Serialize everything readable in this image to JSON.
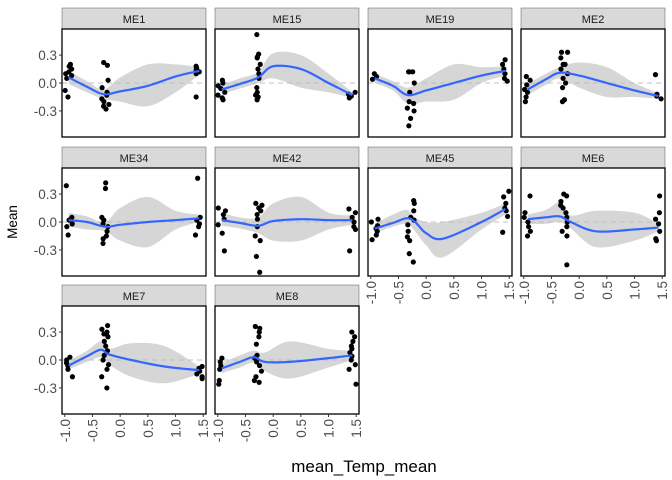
{
  "chart_data": {
    "type": "scatter",
    "layout": "facet_wrap",
    "xlabel": "mean_Temp_mean",
    "ylabel": "Mean",
    "xlim": [
      -1.05,
      1.55
    ],
    "ylim": [
      -0.58,
      0.58
    ],
    "xticks": [
      -1.0,
      -0.5,
      0.0,
      0.5,
      1.0,
      1.5
    ],
    "xtick_labels": [
      "-1.0",
      "-0.5",
      "0.0",
      "0.5",
      "1.0",
      "1.5"
    ],
    "yticks": [
      -0.3,
      0.0,
      0.3
    ],
    "ytick_labels": [
      "-0.3",
      "0.0",
      "0.3"
    ],
    "reference_line": {
      "y": 0,
      "style": "dashed",
      "color": "#bfbfbf"
    },
    "grid": false,
    "colors": {
      "points": "#000000",
      "smooth": "#3366FF",
      "ribbon": "#d4d4d4",
      "strip": "#d9d9d9",
      "panel_border": "#000000"
    },
    "panels": [
      {
        "label": "ME1",
        "points": [
          {
            "x": -0.93,
            "y": [
              0.2,
              0.18,
              0.15,
              0.12,
              0.1,
              0.08,
              0.05,
              -0.08,
              -0.15
            ]
          },
          {
            "x": -0.27,
            "y": [
              0.22,
              0.19,
              0.03,
              -0.05,
              -0.1,
              -0.13,
              -0.17,
              -0.2,
              -0.25,
              -0.28,
              -0.23
            ]
          },
          {
            "x": 1.43,
            "y": [
              0.18,
              0.16,
              0.14,
              0.12,
              0.1,
              -0.15
            ]
          }
        ],
        "smooth": [
          [
            -0.93,
            0.06,
            -0.01,
            0.13
          ],
          [
            -0.6,
            -0.04,
            -0.1,
            0.02
          ],
          [
            -0.3,
            -0.12,
            -0.17,
            -0.07
          ],
          [
            0.0,
            -0.09,
            -0.2,
            0.06
          ],
          [
            0.5,
            -0.03,
            -0.25,
            0.2
          ],
          [
            1.0,
            0.07,
            -0.1,
            0.2
          ],
          [
            1.43,
            0.13,
            0.09,
            0.17
          ]
        ]
      },
      {
        "label": "ME15",
        "points": [
          {
            "x": -0.93,
            "y": [
              0.03,
              0.0,
              -0.03,
              -0.06,
              -0.1,
              -0.13,
              -0.16,
              -0.18
            ]
          },
          {
            "x": -0.27,
            "y": [
              0.52,
              0.31,
              0.28,
              0.27,
              0.2,
              0.15,
              0.1,
              0.05,
              -0.05,
              -0.1,
              -0.15,
              -0.18,
              -0.13
            ]
          },
          {
            "x": 1.43,
            "y": [
              -0.1,
              -0.12,
              -0.14,
              -0.16
            ]
          }
        ],
        "smooth": [
          [
            -0.93,
            -0.07,
            -0.12,
            -0.02
          ],
          [
            -0.6,
            -0.01,
            -0.06,
            0.05
          ],
          [
            -0.27,
            0.06,
            0.0,
            0.12
          ],
          [
            0.0,
            0.18,
            0.05,
            0.32
          ],
          [
            0.5,
            0.15,
            -0.05,
            0.3
          ],
          [
            1.0,
            0.0,
            -0.1,
            0.1
          ],
          [
            1.43,
            -0.13,
            -0.16,
            -0.1
          ]
        ]
      },
      {
        "label": "ME19",
        "points": [
          {
            "x": -0.93,
            "y": [
              0.1,
              0.07,
              0.04
            ]
          },
          {
            "x": -0.27,
            "y": [
              0.12,
              0.12,
              0.12,
              0.0,
              -0.1,
              -0.2,
              -0.22,
              -0.27,
              -0.3,
              -0.38,
              -0.46
            ]
          },
          {
            "x": 1.43,
            "y": [
              0.25,
              0.2,
              0.15,
              0.1,
              0.05,
              0.02
            ]
          }
        ],
        "smooth": [
          [
            -0.93,
            0.05,
            0.0,
            0.1
          ],
          [
            -0.6,
            -0.03,
            -0.08,
            0.02
          ],
          [
            -0.33,
            -0.13,
            -0.22,
            -0.05
          ],
          [
            0.0,
            -0.08,
            -0.2,
            0.05
          ],
          [
            0.5,
            0.0,
            -0.18,
            0.2
          ],
          [
            1.0,
            0.08,
            0.0,
            0.17
          ],
          [
            1.43,
            0.13,
            0.08,
            0.18
          ]
        ]
      },
      {
        "label": "ME2",
        "points": [
          {
            "x": -0.93,
            "y": [
              0.07,
              0.03,
              -0.02,
              -0.07,
              -0.1,
              -0.15,
              -0.2
            ]
          },
          {
            "x": -0.27,
            "y": [
              0.33,
              0.33,
              0.27,
              0.2,
              0.2,
              0.15,
              0.1,
              0.05,
              0.0,
              -0.05,
              -0.18,
              -0.2
            ]
          },
          {
            "x": 1.43,
            "y": [
              0.09,
              -0.12,
              -0.14,
              -0.17
            ]
          }
        ],
        "smooth": [
          [
            -0.93,
            -0.07,
            -0.13,
            -0.01
          ],
          [
            -0.6,
            0.04,
            -0.02,
            0.1
          ],
          [
            -0.35,
            0.11,
            0.05,
            0.17
          ],
          [
            0.0,
            0.08,
            -0.05,
            0.22
          ],
          [
            0.5,
            0.0,
            -0.15,
            0.17
          ],
          [
            1.0,
            -0.08,
            -0.15,
            0.0
          ],
          [
            1.43,
            -0.14,
            -0.17,
            -0.11
          ]
        ]
      },
      {
        "label": "ME34",
        "points": [
          {
            "x": -0.93,
            "y": [
              0.39,
              0.05,
              0.02,
              -0.02,
              -0.05,
              -0.14
            ]
          },
          {
            "x": -0.27,
            "y": [
              0.36,
              0.42,
              0.05,
              0.02,
              -0.02,
              -0.05,
              -0.1,
              -0.15,
              -0.18,
              -0.23
            ]
          },
          {
            "x": 1.43,
            "y": [
              0.47,
              0.05,
              0.02,
              -0.02,
              -0.05,
              -0.14
            ]
          }
        ],
        "smooth": [
          [
            -0.93,
            0.02,
            -0.05,
            0.1
          ],
          [
            -0.6,
            0.0,
            -0.08,
            0.06
          ],
          [
            -0.27,
            -0.05,
            -0.1,
            0.0
          ],
          [
            0.0,
            -0.03,
            -0.2,
            0.15
          ],
          [
            0.5,
            0.0,
            -0.27,
            0.27
          ],
          [
            1.0,
            0.02,
            -0.08,
            0.12
          ],
          [
            1.43,
            0.04,
            0.0,
            0.08
          ]
        ]
      },
      {
        "label": "ME42",
        "points": [
          {
            "x": -0.93,
            "y": [
              0.15,
              0.12,
              0.08,
              0.03,
              -0.03,
              -0.12,
              -0.31
            ]
          },
          {
            "x": -0.27,
            "y": [
              0.2,
              0.18,
              0.15,
              0.12,
              0.08,
              0.03,
              -0.05,
              -0.15,
              -0.2,
              -0.37,
              -0.54
            ]
          },
          {
            "x": 1.43,
            "y": [
              0.14,
              0.1,
              0.05,
              0.0,
              -0.05,
              -0.08,
              -0.31
            ]
          }
        ],
        "smooth": [
          [
            -0.93,
            0.02,
            -0.04,
            0.1
          ],
          [
            -0.6,
            -0.01,
            -0.07,
            0.05
          ],
          [
            -0.27,
            -0.04,
            -0.12,
            0.05
          ],
          [
            0.0,
            0.01,
            -0.2,
            0.2
          ],
          [
            0.5,
            0.03,
            -0.2,
            0.27
          ],
          [
            1.0,
            0.02,
            -0.08,
            0.1
          ],
          [
            1.43,
            0.02,
            -0.03,
            0.07
          ]
        ]
      },
      {
        "label": "ME45",
        "points": [
          {
            "x": -0.93,
            "y": [
              0.03,
              0.0,
              -0.04,
              -0.07,
              -0.1,
              -0.14,
              -0.19
            ]
          },
          {
            "x": -0.27,
            "y": [
              0.23,
              0.2,
              0.12,
              0.05,
              0.02,
              -0.03,
              -0.1,
              -0.16,
              -0.2,
              -0.34,
              -0.43
            ]
          },
          {
            "x": 1.43,
            "y": [
              0.33,
              0.27,
              0.2,
              0.15,
              0.12,
              0.06,
              -0.11
            ]
          }
        ],
        "smooth": [
          [
            -0.93,
            -0.07,
            -0.12,
            -0.02
          ],
          [
            -0.6,
            -0.01,
            -0.05,
            0.08
          ],
          [
            -0.35,
            0.04,
            -0.02,
            0.13
          ],
          [
            -0.2,
            0.0,
            -0.1,
            0.05
          ],
          [
            0.0,
            -0.12,
            -0.25,
            0.0
          ],
          [
            0.3,
            -0.18,
            -0.38,
            0.0
          ],
          [
            1.0,
            0.0,
            -0.08,
            0.1
          ],
          [
            1.43,
            0.14,
            0.08,
            0.2
          ]
        ]
      },
      {
        "label": "ME6",
        "points": [
          {
            "x": -0.93,
            "y": [
              0.28,
              0.1,
              0.05,
              0.0,
              -0.05,
              -0.1,
              -0.15
            ]
          },
          {
            "x": -0.27,
            "y": [
              0.3,
              0.28,
              0.22,
              0.18,
              0.15,
              0.1,
              0.05,
              0.0,
              -0.05,
              -0.1,
              -0.15,
              -0.46
            ]
          },
          {
            "x": 1.43,
            "y": [
              0.28,
              0.1,
              0.03,
              -0.02,
              -0.1,
              -0.18,
              -0.2
            ]
          }
        ],
        "smooth": [
          [
            -0.93,
            0.03,
            -0.02,
            0.08
          ],
          [
            -0.6,
            0.05,
            -0.02,
            0.13
          ],
          [
            -0.35,
            0.06,
            0.0,
            0.21
          ],
          [
            -0.15,
            0.0,
            -0.07,
            0.07
          ],
          [
            0.3,
            -0.1,
            -0.27,
            0.12
          ],
          [
            1.0,
            -0.08,
            -0.2,
            0.1
          ],
          [
            1.43,
            -0.06,
            -0.1,
            -0.02
          ]
        ]
      },
      {
        "label": "ME7",
        "points": [
          {
            "x": -0.93,
            "y": [
              0.03,
              0.0,
              -0.03,
              -0.06,
              -0.1,
              -0.18
            ]
          },
          {
            "x": -0.27,
            "y": [
              0.37,
              0.33,
              0.3,
              0.28,
              0.28,
              0.25,
              0.2,
              0.15,
              0.1,
              0.05,
              0.0,
              -0.05,
              -0.1,
              -0.18,
              -0.3
            ]
          },
          {
            "x": 1.43,
            "y": [
              -0.07,
              -0.09,
              -0.12,
              -0.15,
              -0.18,
              -0.2
            ]
          }
        ],
        "smooth": [
          [
            -0.93,
            -0.06,
            -0.1,
            -0.01
          ],
          [
            -0.6,
            0.04,
            -0.02,
            0.1
          ],
          [
            -0.35,
            0.11,
            0.03,
            0.2
          ],
          [
            -0.2,
            0.06,
            -0.05,
            0.12
          ],
          [
            0.2,
            0.0,
            -0.18,
            0.18
          ],
          [
            0.8,
            -0.07,
            -0.25,
            0.15
          ],
          [
            1.43,
            -0.11,
            -0.15,
            -0.07
          ]
        ]
      },
      {
        "label": "ME8",
        "points": [
          {
            "x": -0.93,
            "y": [
              0.02,
              -0.02,
              -0.06,
              -0.1,
              -0.22,
              -0.26
            ]
          },
          {
            "x": -0.27,
            "y": [
              0.36,
              0.34,
              0.3,
              0.25,
              0.17,
              0.05,
              0.02,
              -0.02,
              -0.06,
              -0.12,
              -0.18,
              -0.22,
              -0.24
            ]
          },
          {
            "x": 1.43,
            "y": [
              0.3,
              0.25,
              0.2,
              0.15,
              0.12,
              0.08,
              0.04,
              0.0,
              -0.05,
              -0.1,
              -0.26
            ]
          }
        ],
        "smooth": [
          [
            -0.93,
            -0.09,
            -0.14,
            -0.03
          ],
          [
            -0.6,
            -0.02,
            -0.08,
            0.05
          ],
          [
            -0.35,
            0.03,
            -0.03,
            0.1
          ],
          [
            -0.15,
            -0.02,
            -0.12,
            0.08
          ],
          [
            0.3,
            -0.02,
            -0.2,
            0.2
          ],
          [
            1.0,
            0.02,
            -0.08,
            0.12
          ],
          [
            1.43,
            0.05,
            0.0,
            0.1
          ]
        ]
      }
    ]
  }
}
